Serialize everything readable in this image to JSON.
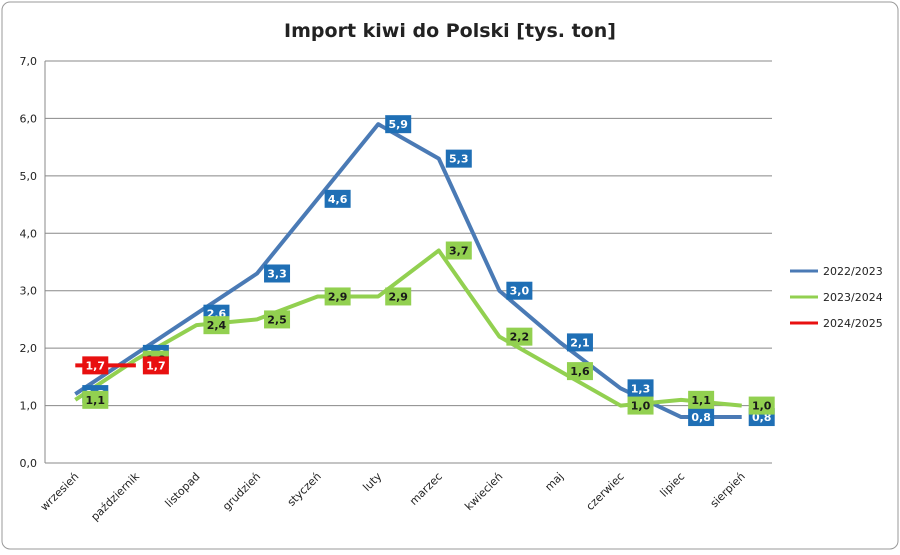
{
  "chart_data": {
    "type": "line",
    "title": "Import kiwi do Polski [tys. ton]",
    "categories": [
      "wrzesień",
      "październik",
      "listopad",
      "grudzień",
      "styczeń",
      "luty",
      "marzec",
      "kwiecień",
      "maj",
      "czerwiec",
      "lipiec",
      "sierpień"
    ],
    "series": [
      {
        "name": "2022/2023",
        "color": "#4a7ab5",
        "label_color": "#1f6fb5",
        "text_color": "#ffffff",
        "values": [
          1.2,
          1.9,
          2.6,
          3.3,
          4.6,
          5.9,
          5.3,
          3.0,
          2.1,
          1.3,
          0.8,
          0.8
        ],
        "value_labels": [
          "1,2",
          "1,9",
          "2,6",
          "3,3",
          "4,6",
          "5,9",
          "5,3",
          "3,0",
          "2,1",
          "1,3",
          "0,8",
          "0,8"
        ]
      },
      {
        "name": "2023/2024",
        "color": "#92d050",
        "label_color": "#92d050",
        "text_color": "#1a1a1a",
        "values": [
          1.1,
          1.8,
          2.4,
          2.5,
          2.9,
          2.9,
          3.7,
          2.2,
          1.6,
          1.0,
          1.1,
          1.0
        ],
        "value_labels": [
          "1,1",
          "1,8",
          "2,4",
          "2,5",
          "2,9",
          "2,9",
          "3,7",
          "2,2",
          "1,6",
          "1,0",
          "1,1",
          "1,0"
        ]
      },
      {
        "name": "2024/2025",
        "color": "#e81010",
        "label_color": "#e81010",
        "text_color": "#ffffff",
        "values": [
          1.7,
          1.7,
          null,
          null,
          null,
          null,
          null,
          null,
          null,
          null,
          null,
          null
        ],
        "value_labels": [
          "1,7",
          "1,7",
          null,
          null,
          null,
          null,
          null,
          null,
          null,
          null,
          null,
          null
        ]
      }
    ],
    "ylim": [
      0,
      7
    ],
    "yticks": [
      {
        "value": 0,
        "label": "0,0"
      },
      {
        "value": 1,
        "label": "1,0"
      },
      {
        "value": 2,
        "label": "2,0"
      },
      {
        "value": 3,
        "label": "3,0"
      },
      {
        "value": 4,
        "label": "4,0"
      },
      {
        "value": 5,
        "label": "5,0"
      },
      {
        "value": 6,
        "label": "6,0"
      },
      {
        "value": 7,
        "label": "7,0"
      }
    ],
    "grid": true,
    "legend": "right"
  }
}
